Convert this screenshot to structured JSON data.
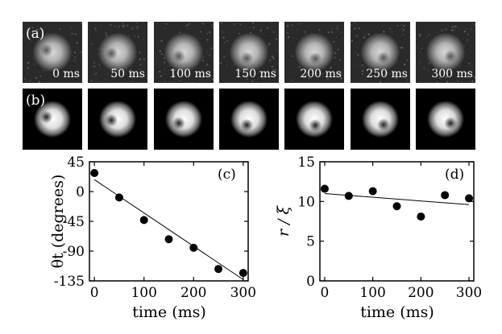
{
  "panels": {
    "row_a_label": "(a)",
    "row_b_label": "(b)",
    "times": [
      "0 ms",
      "50 ms",
      "100 ms",
      "150 ms",
      "200 ms",
      "250 ms",
      "300 ms"
    ],
    "colors": {
      "background": "#000000",
      "foreground": "#ffffff"
    }
  },
  "chart_data": [
    {
      "type": "scatter",
      "panel_label": "(c)",
      "xlabel": "time (ms)",
      "ylabel": "θt (degrees)",
      "xlim": [
        -10,
        310
      ],
      "ylim": [
        -135,
        45
      ],
      "xticks": [
        0,
        100,
        200,
        300
      ],
      "yticks": [
        45,
        0,
        -45,
        -90,
        -135
      ],
      "ytick_labels": [
        "45",
        "0",
        "-45",
        "-90",
        "-135"
      ],
      "x": [
        0,
        50,
        100,
        150,
        200,
        250,
        300
      ],
      "y": [
        28,
        -9,
        -43,
        -72,
        -85,
        -117,
        -123
      ],
      "fit_line": {
        "x": [
          0,
          300
        ],
        "y": [
          18,
          -133
        ]
      }
    },
    {
      "type": "scatter",
      "panel_label": "(d)",
      "xlabel": "time (ms)",
      "ylabel": "r / ξ",
      "xlim": [
        -10,
        310
      ],
      "ylim": [
        0,
        15
      ],
      "xticks": [
        0,
        100,
        200,
        300
      ],
      "yticks": [
        0,
        5,
        10,
        15
      ],
      "ytick_labels": [
        "0",
        "5",
        "10",
        "15"
      ],
      "x": [
        0,
        50,
        100,
        150,
        200,
        250,
        300
      ],
      "y": [
        11.6,
        10.7,
        11.3,
        9.4,
        8.1,
        10.8,
        10.4
      ],
      "fit_line": {
        "x": [
          0,
          300
        ],
        "y": [
          11.0,
          9.6
        ]
      }
    }
  ]
}
